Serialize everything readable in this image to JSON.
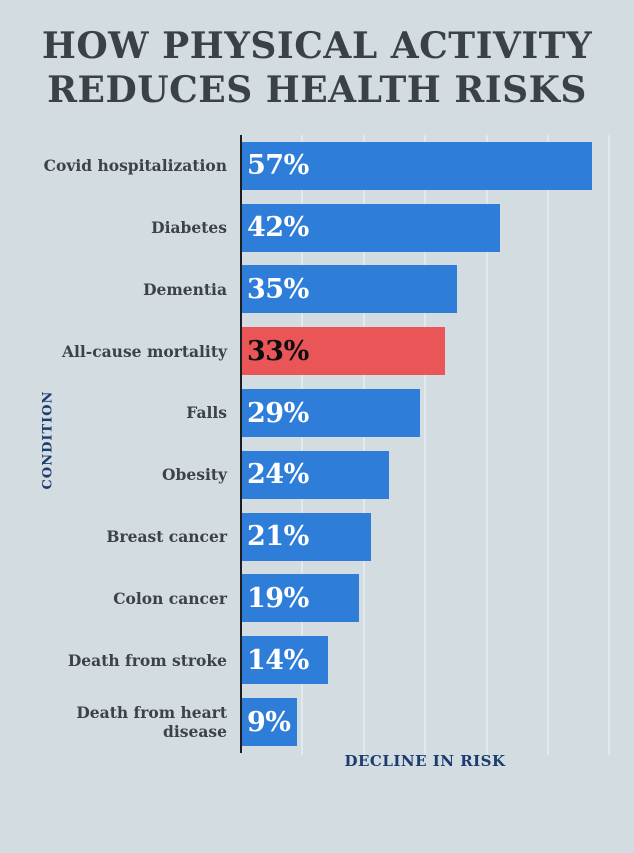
{
  "title": {
    "line1": "HOW PHYSICAL ACTIVITY",
    "line2": "REDUCES HEALTH RISKS"
  },
  "chart_data": {
    "type": "bar",
    "orientation": "horizontal",
    "title": "HOW PHYSICAL ACTIVITY REDUCES HEALTH RISKS",
    "categories": [
      "Covid hospitalization",
      "Diabetes",
      "Dementia",
      "All-cause mortality",
      "Falls",
      "Obesity",
      "Breast cancer",
      "Colon cancer",
      "Death from stroke",
      "Death from heart disease"
    ],
    "category_display": [
      "Covid hospitalization",
      "Diabetes",
      "Dementia",
      "All-cause mortality",
      "Falls",
      "Obesity",
      "Breast cancer",
      "Colon cancer",
      "Death from stroke",
      "Death from heart\ndisease"
    ],
    "values": [
      57,
      42,
      35,
      33,
      29,
      24,
      21,
      19,
      14,
      9
    ],
    "value_labels": [
      "57%",
      "42%",
      "35%",
      "33%",
      "29%",
      "24%",
      "21%",
      "19%",
      "14%",
      "9%"
    ],
    "highlight_index": 3,
    "highlight_category": "All-cause mortality",
    "xlabel": "DECLINE IN RISK",
    "ylabel": "CONDITION",
    "xlim": [
      0,
      64
    ],
    "grid": true,
    "gridline_interval_percent": 10,
    "legend": "none",
    "colors": {
      "bar": "#2e7dd9",
      "highlight_bar": "#ea5558",
      "value_label_on_bar": "#ffffff",
      "value_label_on_highlight": "#0d0d0d",
      "category_label": "#3b4248",
      "axis_line": "#1b1f23",
      "gridline": "#e0e9ee",
      "axis_title": "#1c3b6e",
      "title_text": "#3a4147",
      "background": "#d2dce1"
    }
  }
}
